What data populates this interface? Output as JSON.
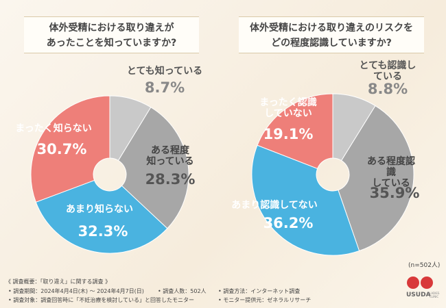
{
  "chart_data": [
    {
      "type": "pie",
      "title": [
        "体外受精における取り違えが",
        "あったことを知っていますか?"
      ],
      "categories": [
        "とても知っている",
        "ある程度\n知っている",
        "あまり知らない",
        "まったく知らない"
      ],
      "values": [
        8.7,
        28.3,
        32.3,
        30.7
      ],
      "value_labels": [
        "8.7%",
        "28.3%",
        "32.3%",
        "30.7%"
      ],
      "colors": [
        "#c9c9c9",
        "#a7a7a7",
        "#4ab3e0",
        "#ee7f79"
      ]
    },
    {
      "type": "pie",
      "title": [
        "体外受精における取り違えのリスクを",
        "どの程度認識していますか?"
      ],
      "categories": [
        "とても認識している",
        "ある程度認識\nしている",
        "あまり認識してない",
        "まったく認識\nしていない"
      ],
      "values": [
        8.8,
        35.9,
        36.2,
        19.1
      ],
      "value_labels": [
        "8.8%",
        "35.9%",
        "36.2%",
        "19.1%"
      ],
      "colors": [
        "#c9c9c9",
        "#a7a7a7",
        "#4ab3e0",
        "#ee7f79"
      ]
    }
  ],
  "sample": "(n=502人)",
  "footer": {
    "heading": "《 調査概要：「取り違え」に関する調査 》",
    "items": [
      "調査期間：2024年4月4日(木) ～ 2024年4月7日(日)",
      "調査人数：502人",
      "調査方法：インターネット調査",
      "調査対象：調査回答時に「不妊治療を検討している」と回答したモニター",
      "モニター提供元：ゼネラルリサーチ"
    ]
  },
  "logo": {
    "name": "USUDA",
    "sub": "LADIES CLINIC"
  }
}
